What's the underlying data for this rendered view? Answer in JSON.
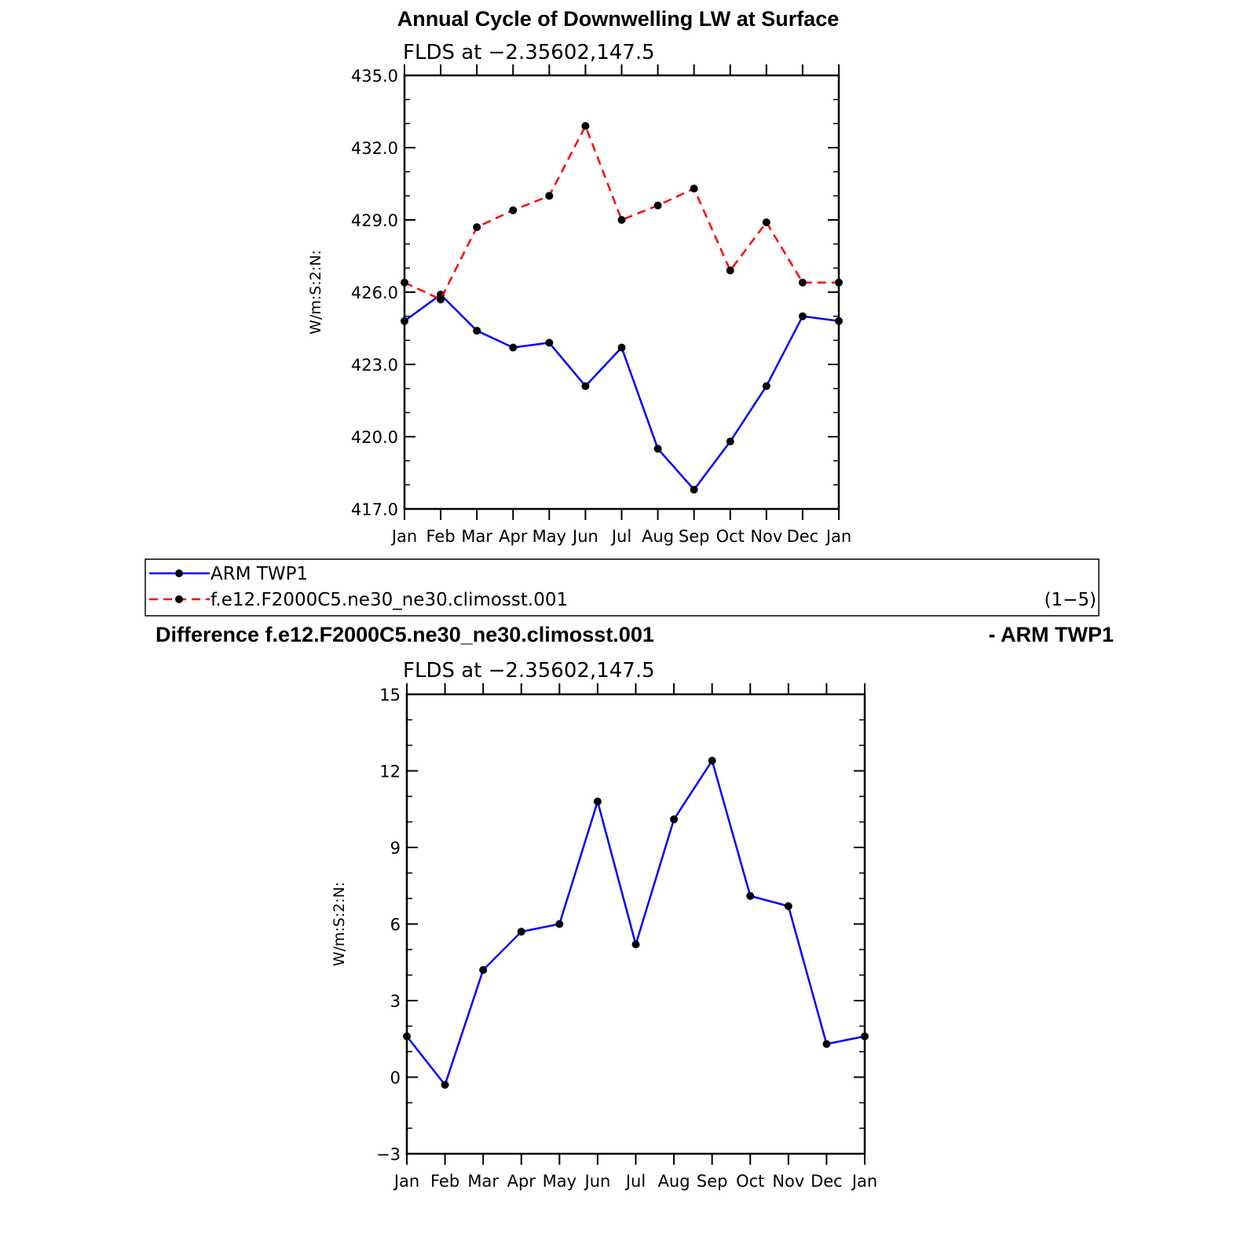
{
  "chart_data": [
    {
      "type": "line",
      "title": "Annual Cycle of Downwelling LW at Surface",
      "subtitle": "FLDS at −2.35602,147.5",
      "ylabel": "W/m:S:2:N:",
      "categories": [
        "Jan",
        "Feb",
        "Mar",
        "Apr",
        "May",
        "Jun",
        "Jul",
        "Aug",
        "Sep",
        "Oct",
        "Nov",
        "Dec",
        "Jan"
      ],
      "ylim": [
        417.0,
        435.0
      ],
      "yticks": [
        "417.0",
        "420.0",
        "423.0",
        "426.0",
        "429.0",
        "432.0",
        "435.0"
      ],
      "series": [
        {
          "name": "ARM TWP1",
          "color": "#0000ff",
          "dash": "solid",
          "values": [
            424.8,
            425.9,
            424.4,
            423.7,
            423.9,
            422.1,
            423.7,
            419.5,
            417.8,
            419.8,
            422.1,
            425.0,
            424.8
          ]
        },
        {
          "name": "f.e12.F2000C5.ne30_ne30.climosst.001",
          "color": "#ff0000",
          "dash": "dashed",
          "values": [
            426.4,
            425.7,
            428.7,
            429.4,
            430.0,
            432.9,
            429.0,
            429.6,
            430.3,
            426.9,
            428.9,
            426.4,
            426.4
          ]
        }
      ],
      "legend": {
        "position": "bottom",
        "note": "(1−5)"
      }
    },
    {
      "type": "line",
      "title_left": "Difference f.e12.F2000C5.ne30_ne30.climosst.001",
      "title_right": "- ARM TWP1",
      "subtitle": "FLDS at −2.35602,147.5",
      "ylabel": "W/m:S:2:N:",
      "categories": [
        "Jan",
        "Feb",
        "Mar",
        "Apr",
        "May",
        "Jun",
        "Jul",
        "Aug",
        "Sep",
        "Oct",
        "Nov",
        "Dec",
        "Jan"
      ],
      "ylim": [
        -3,
        15
      ],
      "yticks": [
        "−3",
        "0",
        "3",
        "6",
        "9",
        "12",
        "15"
      ],
      "series": [
        {
          "color": "#0000ff",
          "dash": "solid",
          "values": [
            1.6,
            -0.3,
            4.2,
            5.7,
            6.0,
            10.8,
            5.2,
            10.1,
            12.4,
            7.1,
            6.7,
            1.3,
            1.6
          ]
        }
      ]
    }
  ]
}
